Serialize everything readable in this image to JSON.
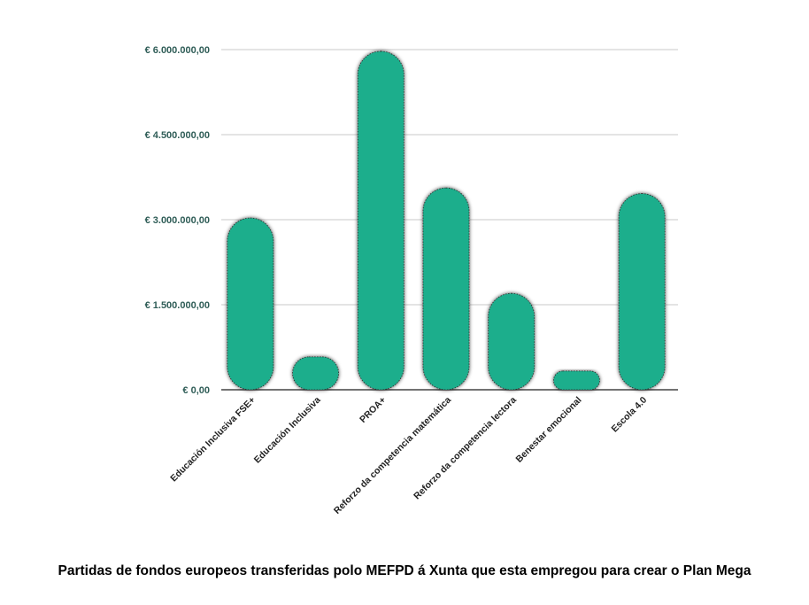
{
  "chart_data": {
    "type": "bar",
    "categories": [
      "Educación Inclusiva FSE+",
      "Educación Inclusiva",
      "PROA+",
      "Reforzo da competencia matemática",
      "Reforzo da competencia lectora",
      "Benestar emocional",
      "Escola 4.0"
    ],
    "values": [
      3030000,
      580000,
      5970000,
      3560000,
      1700000,
      330000,
      3460000
    ],
    "yticks": [
      "€ 0,00",
      "€ 1.500.000,00",
      "€ 3.000.000,00",
      "€ 4.500.000,00",
      "€ 6.000.000,00"
    ],
    "ytick_values": [
      0,
      1500000,
      3000000,
      4500000,
      6000000
    ],
    "ylim": [
      0,
      6000000
    ],
    "grid": true,
    "bar_color": "#1fae8c",
    "grid_color": "#c8c8c8",
    "axis_color": "#444444"
  },
  "caption": "Partidas de fondos europeos transferidas polo MEFPD á Xunta que esta empregou para crear o Plan Mega"
}
